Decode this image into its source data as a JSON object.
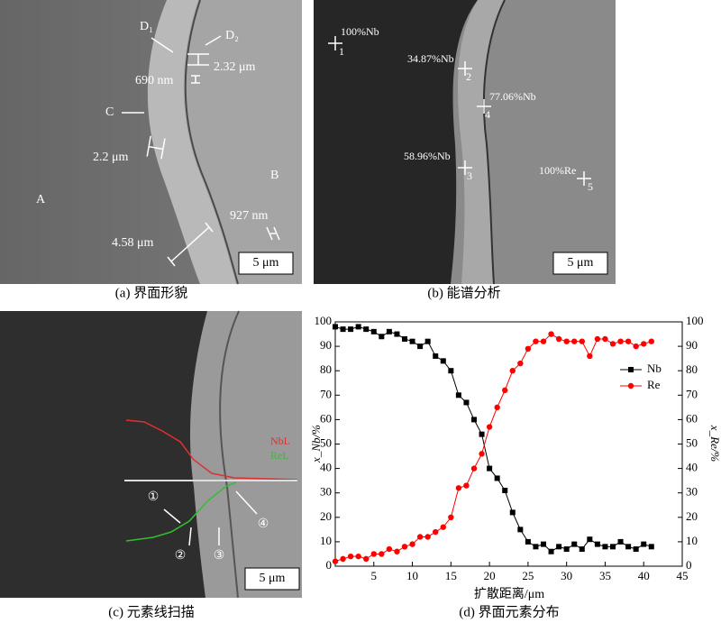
{
  "panels": [
    {
      "caption": "(a) 界面形貌",
      "labels": [
        "D₁",
        "D₂",
        "690 nm",
        "2.32 μm",
        "C",
        "2.2 μm",
        "A",
        "B",
        "927 nm",
        "4.58 μm",
        "5 μm"
      ]
    },
    {
      "caption": "(b) 能谱分析",
      "labels": [
        "100%Nb",
        "1",
        "34.87%Nb",
        "2",
        "77.06%Nb",
        "4",
        "58.96%Nb",
        "3",
        "100%Re",
        "5",
        "5 μm"
      ]
    },
    {
      "caption": "(c) 元素线扫描",
      "labels": [
        "NbL",
        "ReL",
        "①",
        "②",
        "③",
        "④",
        "5 μm"
      ]
    },
    {
      "caption": "(d) 界面元素分布"
    }
  ],
  "chart_data": {
    "type": "line",
    "xlabel": "扩散距离/μm",
    "ylabel": "x_Nb/%",
    "y2label": "x_Re/%",
    "x": [
      0,
      1,
      2,
      3,
      4,
      5,
      6,
      7,
      8,
      9,
      10,
      11,
      12,
      13,
      14,
      15,
      16,
      17,
      18,
      19,
      20,
      21,
      22,
      23,
      24,
      25,
      26,
      27,
      28,
      29,
      30,
      31,
      32,
      33,
      34,
      35,
      36,
      37,
      38,
      39,
      40,
      41
    ],
    "series": [
      {
        "name": "Nb",
        "color": "#000000",
        "marker": "square",
        "values": [
          98,
          97,
          97,
          98,
          97,
          96,
          94,
          96,
          95,
          93,
          92,
          90,
          92,
          86,
          84,
          80,
          70,
          67,
          60,
          54,
          40,
          36,
          31,
          22,
          15,
          10,
          8,
          9,
          6,
          8,
          7,
          9,
          7,
          11,
          9,
          8,
          8,
          10,
          8,
          7,
          9,
          8
        ]
      },
      {
        "name": "Re",
        "color": "#ff0000",
        "marker": "circle",
        "axis": "y2",
        "values": [
          2,
          3,
          4,
          4,
          3,
          5,
          5,
          7,
          6,
          8,
          9,
          12,
          12,
          14,
          16,
          20,
          32,
          33,
          40,
          46,
          57,
          65,
          72,
          80,
          83,
          89,
          92,
          92,
          95,
          93,
          92,
          92,
          92,
          86,
          93,
          93,
          91,
          92,
          92,
          90,
          91,
          92
        ]
      }
    ],
    "xlim": [
      0,
      45
    ],
    "xticks": [
      5,
      10,
      15,
      20,
      25,
      30,
      35,
      40,
      45
    ],
    "ylim": [
      0,
      100
    ],
    "yticks": [
      0,
      10,
      20,
      30,
      40,
      50,
      60,
      70,
      80,
      90,
      100
    ],
    "y2lim": [
      0,
      100
    ],
    "y2ticks": [
      0,
      10,
      20,
      30,
      40,
      50,
      60,
      70,
      80,
      90,
      100
    ],
    "legend": "upper-right"
  }
}
